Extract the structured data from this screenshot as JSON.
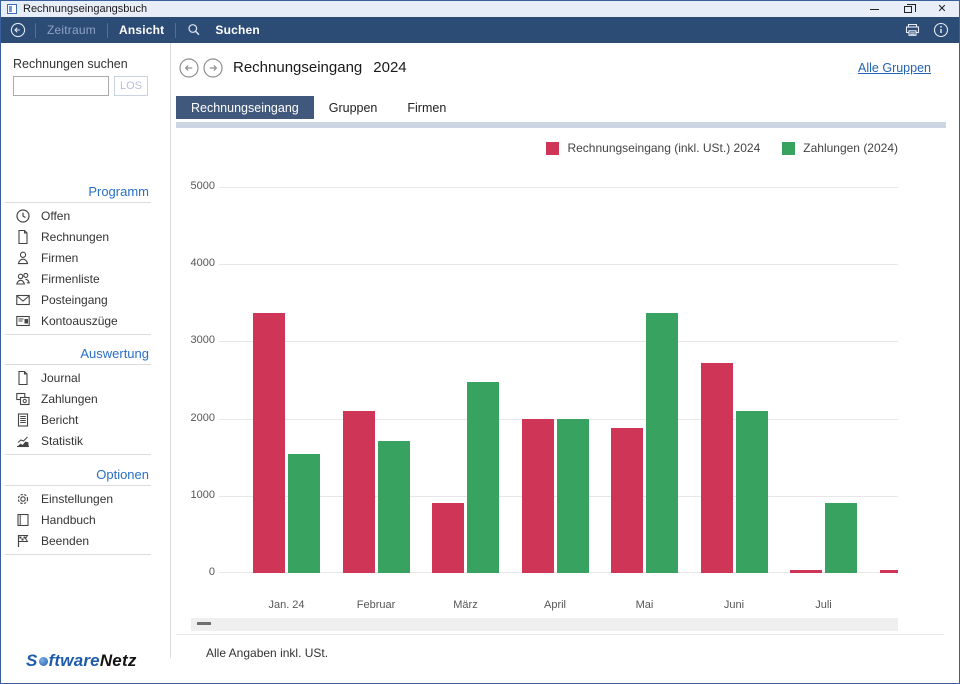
{
  "window": {
    "title": "Rechnungseingangsbuch"
  },
  "toolbar": {
    "zeitraum": "Zeitraum",
    "ansicht": "Ansicht",
    "suchen": "Suchen"
  },
  "sidebar": {
    "search_label": "Rechnungen suchen",
    "search_button": "LOS",
    "sections": [
      {
        "title": "Programm",
        "items": [
          {
            "icon": "clock-icon",
            "label": "Offen"
          },
          {
            "icon": "document-icon",
            "label": "Rechnungen"
          },
          {
            "icon": "person-icon",
            "label": "Firmen"
          },
          {
            "icon": "people-icon",
            "label": "Firmenliste"
          },
          {
            "icon": "envelope-icon",
            "label": "Posteingang"
          },
          {
            "icon": "bank-statement-icon",
            "label": "Kontoauszüge"
          }
        ]
      },
      {
        "title": "Auswertung",
        "items": [
          {
            "icon": "document-icon",
            "label": "Journal"
          },
          {
            "icon": "payments-icon",
            "label": "Zahlungen"
          },
          {
            "icon": "report-icon",
            "label": "Bericht"
          },
          {
            "icon": "statistics-icon",
            "label": "Statistik"
          }
        ]
      },
      {
        "title": "Optionen",
        "items": [
          {
            "icon": "gear-icon",
            "label": "Einstellungen"
          },
          {
            "icon": "book-icon",
            "label": "Handbuch"
          },
          {
            "icon": "flag-icon",
            "label": "Beenden"
          }
        ]
      }
    ]
  },
  "main": {
    "title": "Rechnungseingang",
    "year": "2024",
    "all_groups_link": "Alle Gruppen",
    "tabs": [
      {
        "label": "Rechnungseingang",
        "active": true
      },
      {
        "label": "Gruppen",
        "active": false
      },
      {
        "label": "Firmen",
        "active": false
      }
    ],
    "footer_note": "Alle Angaben inkl. USt."
  },
  "chart_data": {
    "type": "bar",
    "categories": [
      "Jan. 24",
      "Februar",
      "März",
      "April",
      "Mai",
      "Juni",
      "Juli"
    ],
    "series": [
      {
        "name": "Rechnungseingang (inkl. USt.) 2024",
        "color": "#ce3557",
        "values": [
          3370,
          2100,
          910,
          2000,
          1880,
          2720,
          40
        ]
      },
      {
        "name": "Zahlungen (2024)",
        "color": "#38a261",
        "values": [
          1540,
          1710,
          2480,
          2000,
          3370,
          2100,
          910
        ]
      }
    ],
    "partial_next_bar": {
      "series": "Rechnungseingang (inkl. USt.) 2024",
      "value": 40
    },
    "ylim": [
      0,
      5000
    ],
    "yticks": [
      0,
      1000,
      2000,
      3000,
      4000,
      5000
    ],
    "grid": true,
    "legend_position": "top-right"
  },
  "logo": {
    "prefix": "S",
    "middle": "ftware",
    "suffix": "Netz"
  }
}
